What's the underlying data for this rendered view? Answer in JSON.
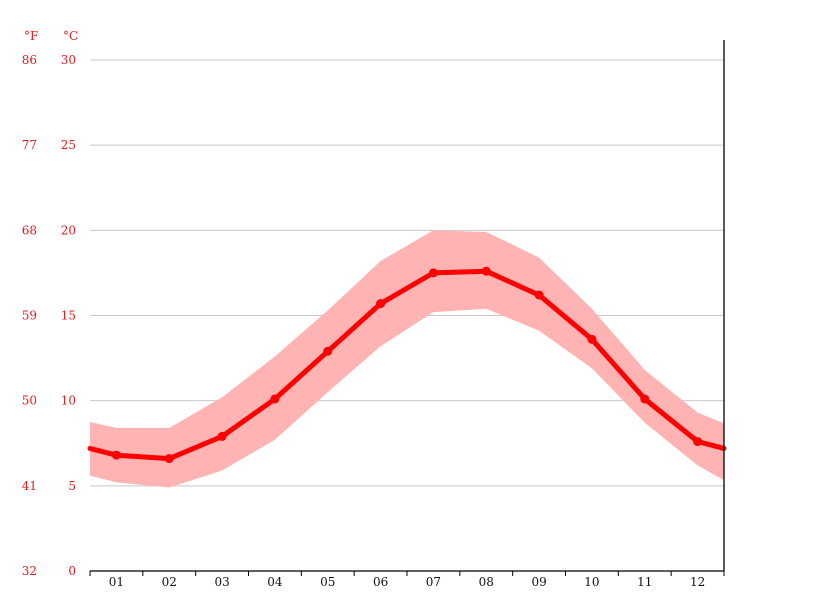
{
  "chart_data": {
    "type": "line",
    "title": "",
    "xlabel": "",
    "ylabel": "",
    "categories": [
      "01",
      "02",
      "03",
      "04",
      "05",
      "06",
      "07",
      "08",
      "09",
      "10",
      "11",
      "12"
    ],
    "y_units": {
      "left_outer": "°F",
      "left_inner": "°C"
    },
    "ylim": [
      0,
      30
    ],
    "yticks_c": [
      "0",
      "5",
      "10",
      "15",
      "20",
      "25",
      "30"
    ],
    "yticks_f": [
      "32",
      "41",
      "50",
      "59",
      "68",
      "77",
      "86"
    ],
    "grid": true,
    "series": [
      {
        "values": [
          6.8,
          6.6,
          7.9,
          10.1,
          12.9,
          15.7,
          17.5,
          17.6,
          16.2,
          13.6,
          10.1,
          7.6
        ]
      }
    ],
    "band": {
      "upper": [
        8.4,
        8.4,
        10.2,
        12.6,
        15.3,
        18.2,
        20.0,
        19.9,
        18.4,
        15.4,
        11.8,
        9.3
      ],
      "lower": [
        5.2,
        4.9,
        5.9,
        7.7,
        10.5,
        13.2,
        15.2,
        15.4,
        14.1,
        11.9,
        8.7,
        6.2
      ]
    },
    "edge_values": {
      "start": 7.2,
      "end": 7.2
    },
    "colors": {
      "line": "#ff0000",
      "band": "#ffb3b3",
      "axis_text": "#e41a1c",
      "grid": "#c8c8c8"
    }
  }
}
